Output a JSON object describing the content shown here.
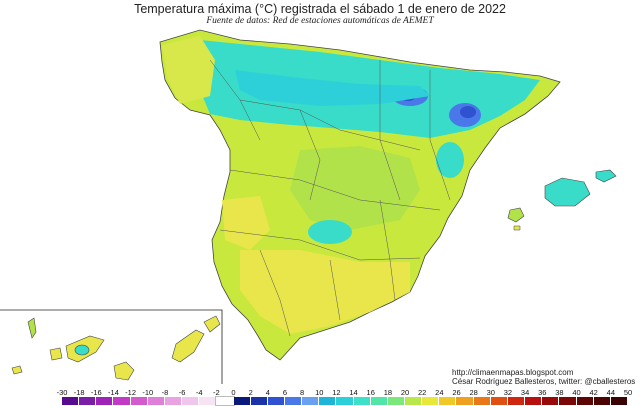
{
  "header": {
    "title": "Temperatura máxima (°C) registrada el sábado 1 de enero de 2022",
    "subtitle": "Fuente de datos: Red de estaciones automáticas de AEMET"
  },
  "credits": {
    "url": "http://climaenmapas.blogspot.com",
    "author": "César Rodríguez Ballesteros, twitter: @cballesteros"
  },
  "legend": {
    "unit": "°C",
    "ticks": [
      "-30",
      "-18",
      "-16",
      "-14",
      "-12",
      "-10",
      "-8",
      "-6",
      "-4",
      "-2",
      "0",
      "2",
      "4",
      "6",
      "8",
      "10",
      "12",
      "14",
      "16",
      "18",
      "20",
      "22",
      "24",
      "26",
      "28",
      "30",
      "32",
      "34",
      "36",
      "38",
      "40",
      "42",
      "44",
      "50"
    ],
    "colors": [
      "#5a0a8c",
      "#7a1ea8",
      "#a023b8",
      "#c13cc6",
      "#d35bcf",
      "#e07fd9",
      "#e9a3e3",
      "#f0c6ec",
      "#f6e3f4",
      "#ffffff",
      "#0a1a7a",
      "#1a33a8",
      "#2e52d0",
      "#4a78e8",
      "#6aa0f0",
      "#1fb5d8",
      "#2dd0d8",
      "#3fe0c8",
      "#4fe6a8",
      "#7ae87a",
      "#b8e84a",
      "#e8e83a",
      "#f0c828",
      "#f0a020",
      "#e87818",
      "#e05010",
      "#d02810",
      "#b81010",
      "#980a0a",
      "#7a0808",
      "#5c0606",
      "#4a0404",
      "#3a0202"
    ]
  },
  "map": {
    "main_color": "#c8e83e",
    "colors": {
      "warm": "#e8e64a",
      "mild": "#b2e24a",
      "cool": "#38dcc8",
      "cold": "#1fb5d8",
      "coldest": "#4a78e8",
      "sea": "#ffffff"
    }
  }
}
